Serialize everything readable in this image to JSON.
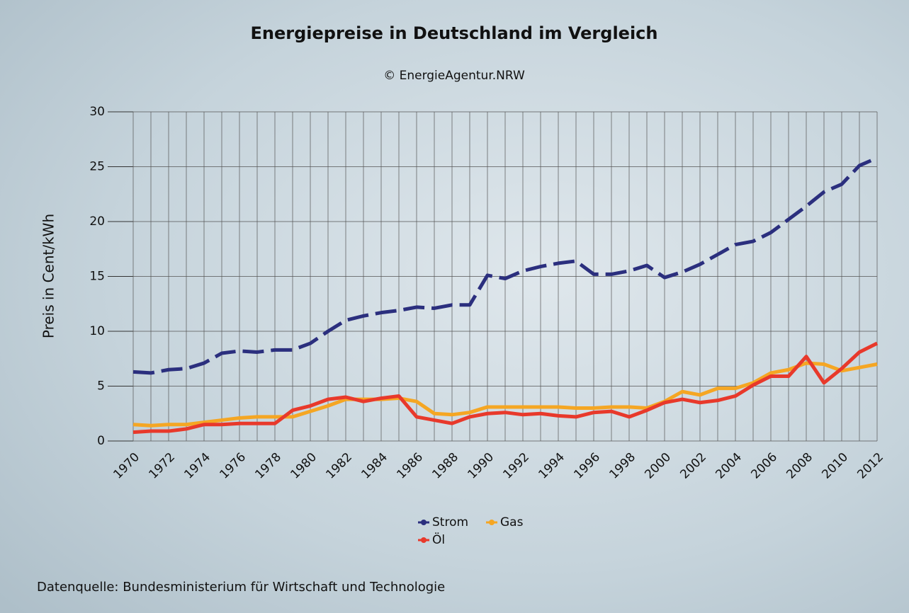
{
  "chart_data": {
    "type": "line",
    "title": "Energiepreise in Deutschland im Vergleich",
    "subtitle": "© EnergieAgentur.NRW",
    "y_label": "Preis in Cent/kWh",
    "source": "Datenquelle: Bundesministerium für Wirtschaft und Technologie",
    "x": [
      1970,
      1971,
      1972,
      1973,
      1974,
      1975,
      1976,
      1977,
      1978,
      1979,
      1980,
      1981,
      1982,
      1983,
      1984,
      1985,
      1986,
      1987,
      1988,
      1989,
      1990,
      1991,
      1992,
      1993,
      1994,
      1995,
      1996,
      1997,
      1998,
      1999,
      2000,
      2001,
      2002,
      2003,
      2004,
      2005,
      2006,
      2007,
      2008,
      2009,
      2010,
      2011,
      2012
    ],
    "series": [
      {
        "name": "Strom",
        "color": "#2b2f7e",
        "style": "dashed",
        "values": [
          6.3,
          6.2,
          6.5,
          6.6,
          7.1,
          8.0,
          8.2,
          8.1,
          8.3,
          8.3,
          8.9,
          10.0,
          11.0,
          11.4,
          11.7,
          11.9,
          12.2,
          12.1,
          12.4,
          12.4,
          15.1,
          14.8,
          15.5,
          15.9,
          16.2,
          16.4,
          15.2,
          15.2,
          15.5,
          16.0,
          14.9,
          15.4,
          16.1,
          17.0,
          17.9,
          18.2,
          19.0,
          20.2,
          21.4,
          22.7,
          23.4,
          25.1,
          25.8
        ]
      },
      {
        "name": "Gas",
        "color": "#f5a623",
        "style": "solid",
        "values": [
          1.5,
          1.4,
          1.5,
          1.5,
          1.7,
          1.9,
          2.1,
          2.2,
          2.2,
          2.2,
          2.7,
          3.2,
          3.8,
          3.8,
          3.8,
          3.9,
          3.6,
          2.5,
          2.4,
          2.6,
          3.1,
          3.1,
          3.1,
          3.1,
          3.1,
          3.0,
          3.0,
          3.1,
          3.1,
          3.0,
          3.6,
          4.5,
          4.2,
          4.8,
          4.8,
          5.3,
          6.2,
          6.5,
          7.1,
          7.0,
          6.4,
          6.7,
          7.0
        ]
      },
      {
        "name": "Öl",
        "color": "#e8392b",
        "style": "solid",
        "values": [
          0.8,
          0.9,
          0.9,
          1.1,
          1.5,
          1.5,
          1.6,
          1.6,
          1.6,
          2.8,
          3.2,
          3.8,
          4.0,
          3.6,
          3.9,
          4.1,
          2.2,
          1.9,
          1.6,
          2.2,
          2.5,
          2.6,
          2.4,
          2.5,
          2.3,
          2.2,
          2.6,
          2.7,
          2.2,
          2.8,
          3.5,
          3.8,
          3.5,
          3.7,
          4.1,
          5.1,
          5.9,
          5.9,
          7.7,
          5.3,
          6.6,
          8.1,
          8.9
        ]
      }
    ],
    "xlim": [
      1970,
      2012
    ],
    "xticks": [
      1970,
      1972,
      1974,
      1976,
      1978,
      1980,
      1982,
      1984,
      1986,
      1988,
      1990,
      1992,
      1994,
      1996,
      1998,
      2000,
      2002,
      2004,
      2006,
      2008,
      2010,
      2012
    ],
    "xminorticks": [
      1971,
      1973,
      1975,
      1977,
      1979,
      1981,
      1983,
      1985,
      1987,
      1989,
      1991,
      1993,
      1995,
      1997,
      1999,
      2001,
      2003,
      2005,
      2007,
      2009,
      2011
    ],
    "ylim": [
      0,
      30
    ],
    "yticks": [
      0,
      5,
      10,
      15,
      20,
      25,
      30
    ],
    "grid": true,
    "legend": "bottom"
  }
}
